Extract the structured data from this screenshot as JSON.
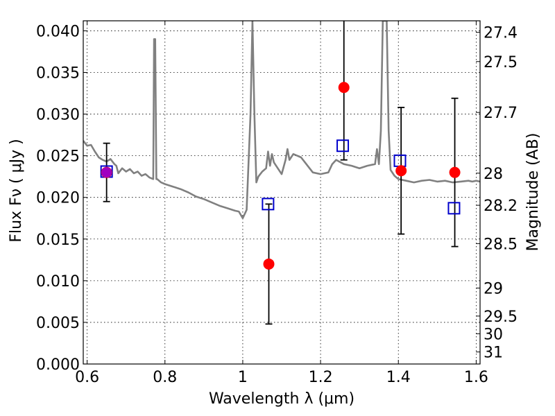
{
  "chart_data": {
    "type": "scatter",
    "title": "",
    "xlabel": "Wavelength  λ (μm)",
    "ylabel": "Flux  Fν  ( μJy )",
    "y2label": "Magnitude (AB)",
    "xlim": [
      0.59,
      1.61
    ],
    "ylim": [
      0.0,
      0.0412
    ],
    "grid": true,
    "x_ticks": [
      {
        "value": 0.6,
        "label": "0.6"
      },
      {
        "value": 0.8,
        "label": "0.8"
      },
      {
        "value": 1.0,
        "label": "1"
      },
      {
        "value": 1.2,
        "label": "1.2"
      },
      {
        "value": 1.4,
        "label": "1.4"
      },
      {
        "value": 1.6,
        "label": "1.6"
      }
    ],
    "y_ticks": [
      {
        "value": 0.0,
        "label": "0.000"
      },
      {
        "value": 0.005,
        "label": "0.005"
      },
      {
        "value": 0.01,
        "label": "0.010"
      },
      {
        "value": 0.015,
        "label": "0.015"
      },
      {
        "value": 0.02,
        "label": "0.020"
      },
      {
        "value": 0.025,
        "label": "0.025"
      },
      {
        "value": 0.03,
        "label": "0.030"
      },
      {
        "value": 0.035,
        "label": "0.035"
      },
      {
        "value": 0.04,
        "label": "0.040"
      }
    ],
    "y2_ticks": [
      {
        "mag": 27.4,
        "label": "27.4"
      },
      {
        "mag": 27.5,
        "label": "27.5"
      },
      {
        "mag": 27.7,
        "label": "27.7"
      },
      {
        "mag": 28.0,
        "label": "28"
      },
      {
        "mag": 28.2,
        "label": "28.2"
      },
      {
        "mag": 28.5,
        "label": "28.5"
      },
      {
        "mag": 29.0,
        "label": "29"
      },
      {
        "mag": 29.5,
        "label": "29.5"
      },
      {
        "mag": 30.0,
        "label": "30"
      },
      {
        "mag": 31.0,
        "label": "31"
      }
    ],
    "series": [
      {
        "kind": "line",
        "color": "#808080",
        "x": [
          0.59,
          0.6,
          0.61,
          0.62,
          0.63,
          0.64,
          0.65,
          0.66,
          0.67,
          0.675,
          0.68,
          0.69,
          0.7,
          0.71,
          0.72,
          0.73,
          0.74,
          0.75,
          0.76,
          0.77,
          0.772,
          0.775,
          0.778,
          0.78,
          0.79,
          0.8,
          0.82,
          0.84,
          0.86,
          0.88,
          0.9,
          0.92,
          0.94,
          0.96,
          0.98,
          0.99,
          1.0,
          1.01,
          1.02,
          1.025,
          1.03,
          1.035,
          1.04,
          1.045,
          1.05,
          1.06,
          1.065,
          1.07,
          1.075,
          1.08,
          1.09,
          1.1,
          1.11,
          1.115,
          1.12,
          1.13,
          1.14,
          1.15,
          1.16,
          1.18,
          1.2,
          1.22,
          1.23,
          1.24,
          1.26,
          1.28,
          1.3,
          1.32,
          1.34,
          1.345,
          1.35,
          1.355,
          1.36,
          1.37,
          1.375,
          1.38,
          1.39,
          1.4,
          1.42,
          1.44,
          1.46,
          1.48,
          1.5,
          1.52,
          1.54,
          1.56,
          1.58,
          1.59,
          1.6,
          1.61
        ],
        "y": [
          0.0268,
          0.0262,
          0.0263,
          0.0255,
          0.0248,
          0.0245,
          0.0243,
          0.0246,
          0.024,
          0.0238,
          0.0229,
          0.0235,
          0.0231,
          0.0234,
          0.0229,
          0.0231,
          0.0226,
          0.0228,
          0.0224,
          0.0222,
          0.039,
          0.039,
          0.0222,
          0.0222,
          0.0218,
          0.0216,
          0.0213,
          0.021,
          0.0206,
          0.0201,
          0.0198,
          0.0194,
          0.019,
          0.0187,
          0.0184,
          0.0183,
          0.0175,
          0.0185,
          0.03,
          0.0412,
          0.03,
          0.0218,
          0.0225,
          0.0228,
          0.0231,
          0.0235,
          0.0255,
          0.0238,
          0.0252,
          0.0242,
          0.0235,
          0.0228,
          0.0245,
          0.0258,
          0.0245,
          0.0252,
          0.025,
          0.0248,
          0.0242,
          0.023,
          0.0228,
          0.023,
          0.024,
          0.0245,
          0.024,
          0.0238,
          0.0235,
          0.0238,
          0.024,
          0.0258,
          0.024,
          0.028,
          0.0412,
          0.0412,
          0.028,
          0.0233,
          0.0226,
          0.0222,
          0.022,
          0.0218,
          0.022,
          0.0221,
          0.0219,
          0.022,
          0.0218,
          0.0219,
          0.022,
          0.0219,
          0.022,
          0.0219
        ]
      },
      {
        "kind": "points",
        "marker": "circle",
        "color": "#ff0000",
        "points": [
          {
            "x": 0.65,
            "y": 0.023,
            "yerr": 0.0035
          },
          {
            "x": 1.067,
            "y": 0.012,
            "yerr": 0.0072
          },
          {
            "x": 1.26,
            "y": 0.0332,
            "yerr": 0.0087
          },
          {
            "x": 1.407,
            "y": 0.0232,
            "yerr": 0.0076
          },
          {
            "x": 1.545,
            "y": 0.023,
            "yerr": 0.0089
          }
        ]
      },
      {
        "kind": "points",
        "marker": "square",
        "color": "#0000cc",
        "points": [
          {
            "x": 0.65,
            "y": 0.0231
          },
          {
            "x": 1.065,
            "y": 0.0192
          },
          {
            "x": 1.257,
            "y": 0.0262
          },
          {
            "x": 1.404,
            "y": 0.0244
          },
          {
            "x": 1.543,
            "y": 0.0187
          }
        ]
      }
    ],
    "colors": {
      "errorbar": "#000000",
      "marker_overlap": "#a000c0"
    }
  }
}
